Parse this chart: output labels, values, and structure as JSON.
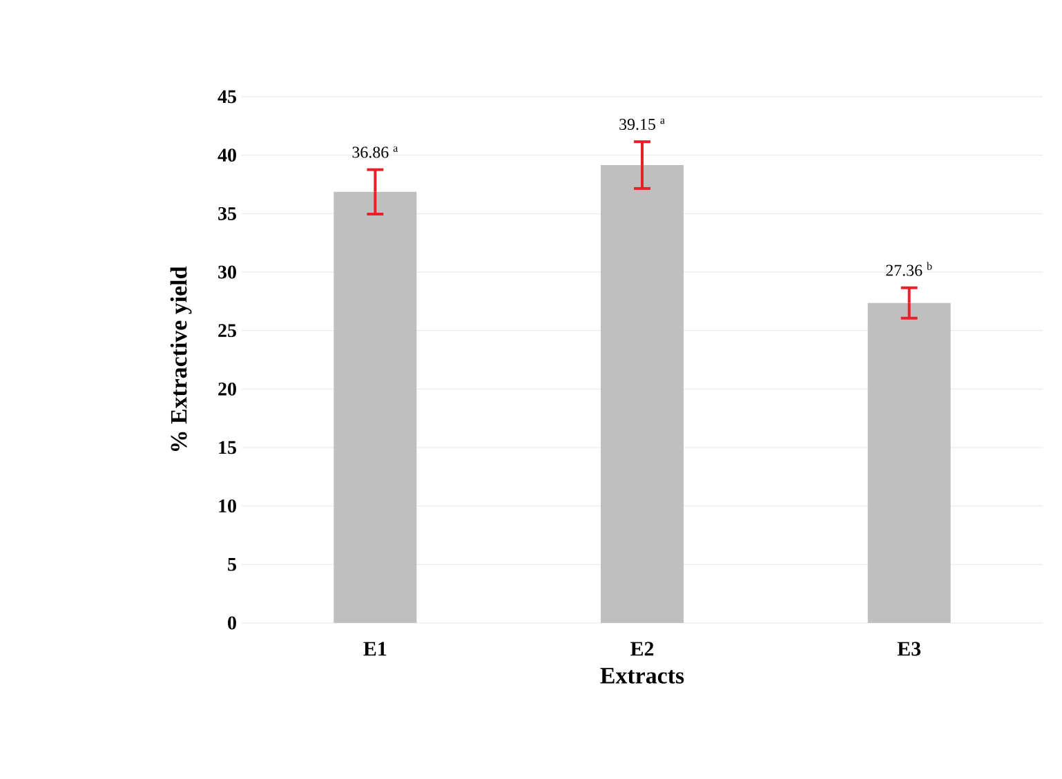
{
  "chart_data": {
    "type": "bar",
    "xlabel": "Extracts",
    "ylabel": "% Extractive yield",
    "categories": [
      "E1",
      "E2",
      "E3"
    ],
    "values": [
      36.86,
      39.15,
      27.36
    ],
    "errors": [
      1.9,
      2.0,
      1.3
    ],
    "value_labels": [
      "36.86 $^{a}$",
      "39.15 $^{a}$",
      "27.36 $^{b}$"
    ],
    "color": "#bfbfbf",
    "ylim": [
      0,
      45
    ],
    "yticks": [
      0,
      5,
      10,
      15,
      20,
      25,
      30,
      35,
      40,
      45
    ],
    "grid": "y"
  }
}
